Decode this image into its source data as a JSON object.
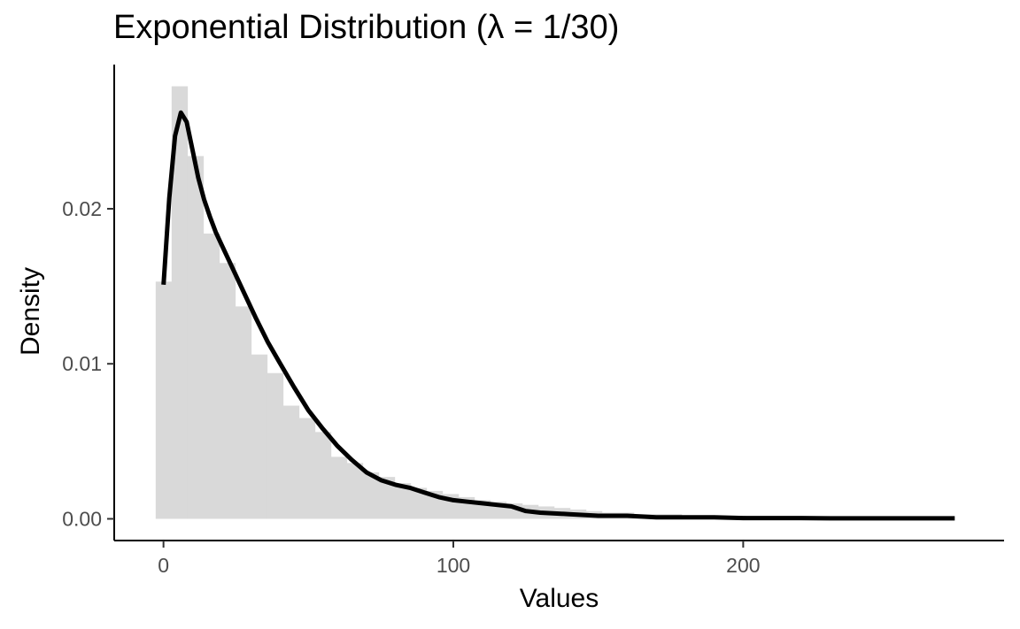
{
  "chart_data": {
    "type": "histogram",
    "title": "Exponential Distribution (λ = 1/30)",
    "xlabel": "Values",
    "ylabel": "Density",
    "xlim": [
      -17,
      290
    ],
    "ylim": [
      -0.0014,
      0.0293
    ],
    "x_ticks": [
      0,
      100,
      200
    ],
    "x_tick_labels": [
      "0",
      "100",
      "200"
    ],
    "y_ticks": [
      0,
      0.01,
      0.02
    ],
    "y_tick_labels": [
      "0.00",
      "0.01",
      "0.02"
    ],
    "grid": false,
    "legend": "none",
    "colors": {
      "bars": "#d9d9d9",
      "density": "#000000",
      "axis": "#000000",
      "ticks": "#333333"
    },
    "histogram": {
      "bin_width": 5.5,
      "bin_start": -2.7,
      "values": [
        0.0153,
        0.0279,
        0.0234,
        0.0184,
        0.0165,
        0.0137,
        0.0106,
        0.0094,
        0.0073,
        0.0065,
        0.0056,
        0.004,
        0.0036,
        0.003,
        0.0027,
        0.0023,
        0.002,
        0.0018,
        0.0016,
        0.0014,
        0.0012,
        0.0011,
        0.001,
        0.0009,
        0.0008,
        0.0007,
        0.0006,
        0.0005,
        0.0004,
        0.0004,
        0.0003,
        0.0003,
        0.0003,
        0.0002,
        0.0002,
        0.0002,
        0.0002,
        0.0001,
        0.0001,
        0.0001,
        0.0001,
        0.0001,
        0.0001,
        0.0001,
        0.0001,
        0.0001,
        5e-05,
        5e-05,
        5e-05,
        5e-05
      ]
    },
    "density": {
      "x": [
        0,
        2,
        4,
        6,
        8,
        10,
        12,
        14,
        16,
        18,
        20,
        24,
        28,
        32,
        36,
        40,
        45,
        50,
        55,
        60,
        65,
        70,
        75,
        80,
        85,
        90,
        95,
        100,
        105,
        110,
        115,
        120,
        125,
        130,
        140,
        150,
        160,
        170,
        180,
        190,
        200,
        210,
        220,
        230,
        240,
        250,
        260,
        270,
        273
      ],
      "y": [
        0.0151,
        0.0207,
        0.0247,
        0.0262,
        0.0256,
        0.0238,
        0.022,
        0.0206,
        0.0195,
        0.0185,
        0.0177,
        0.0161,
        0.0145,
        0.0129,
        0.0114,
        0.0101,
        0.0085,
        0.007,
        0.0058,
        0.0047,
        0.0038,
        0.003,
        0.0025,
        0.0022,
        0.002,
        0.0017,
        0.0014,
        0.0012,
        0.0011,
        0.001,
        0.0009,
        0.0008,
        0.0005,
        0.0004,
        0.0003,
        0.0002,
        0.0002,
        0.0001,
        0.0001,
        0.0001,
        5e-05,
        5e-05,
        5e-05,
        3e-05,
        3e-05,
        3e-05,
        3e-05,
        3e-05,
        3e-05
      ]
    }
  }
}
